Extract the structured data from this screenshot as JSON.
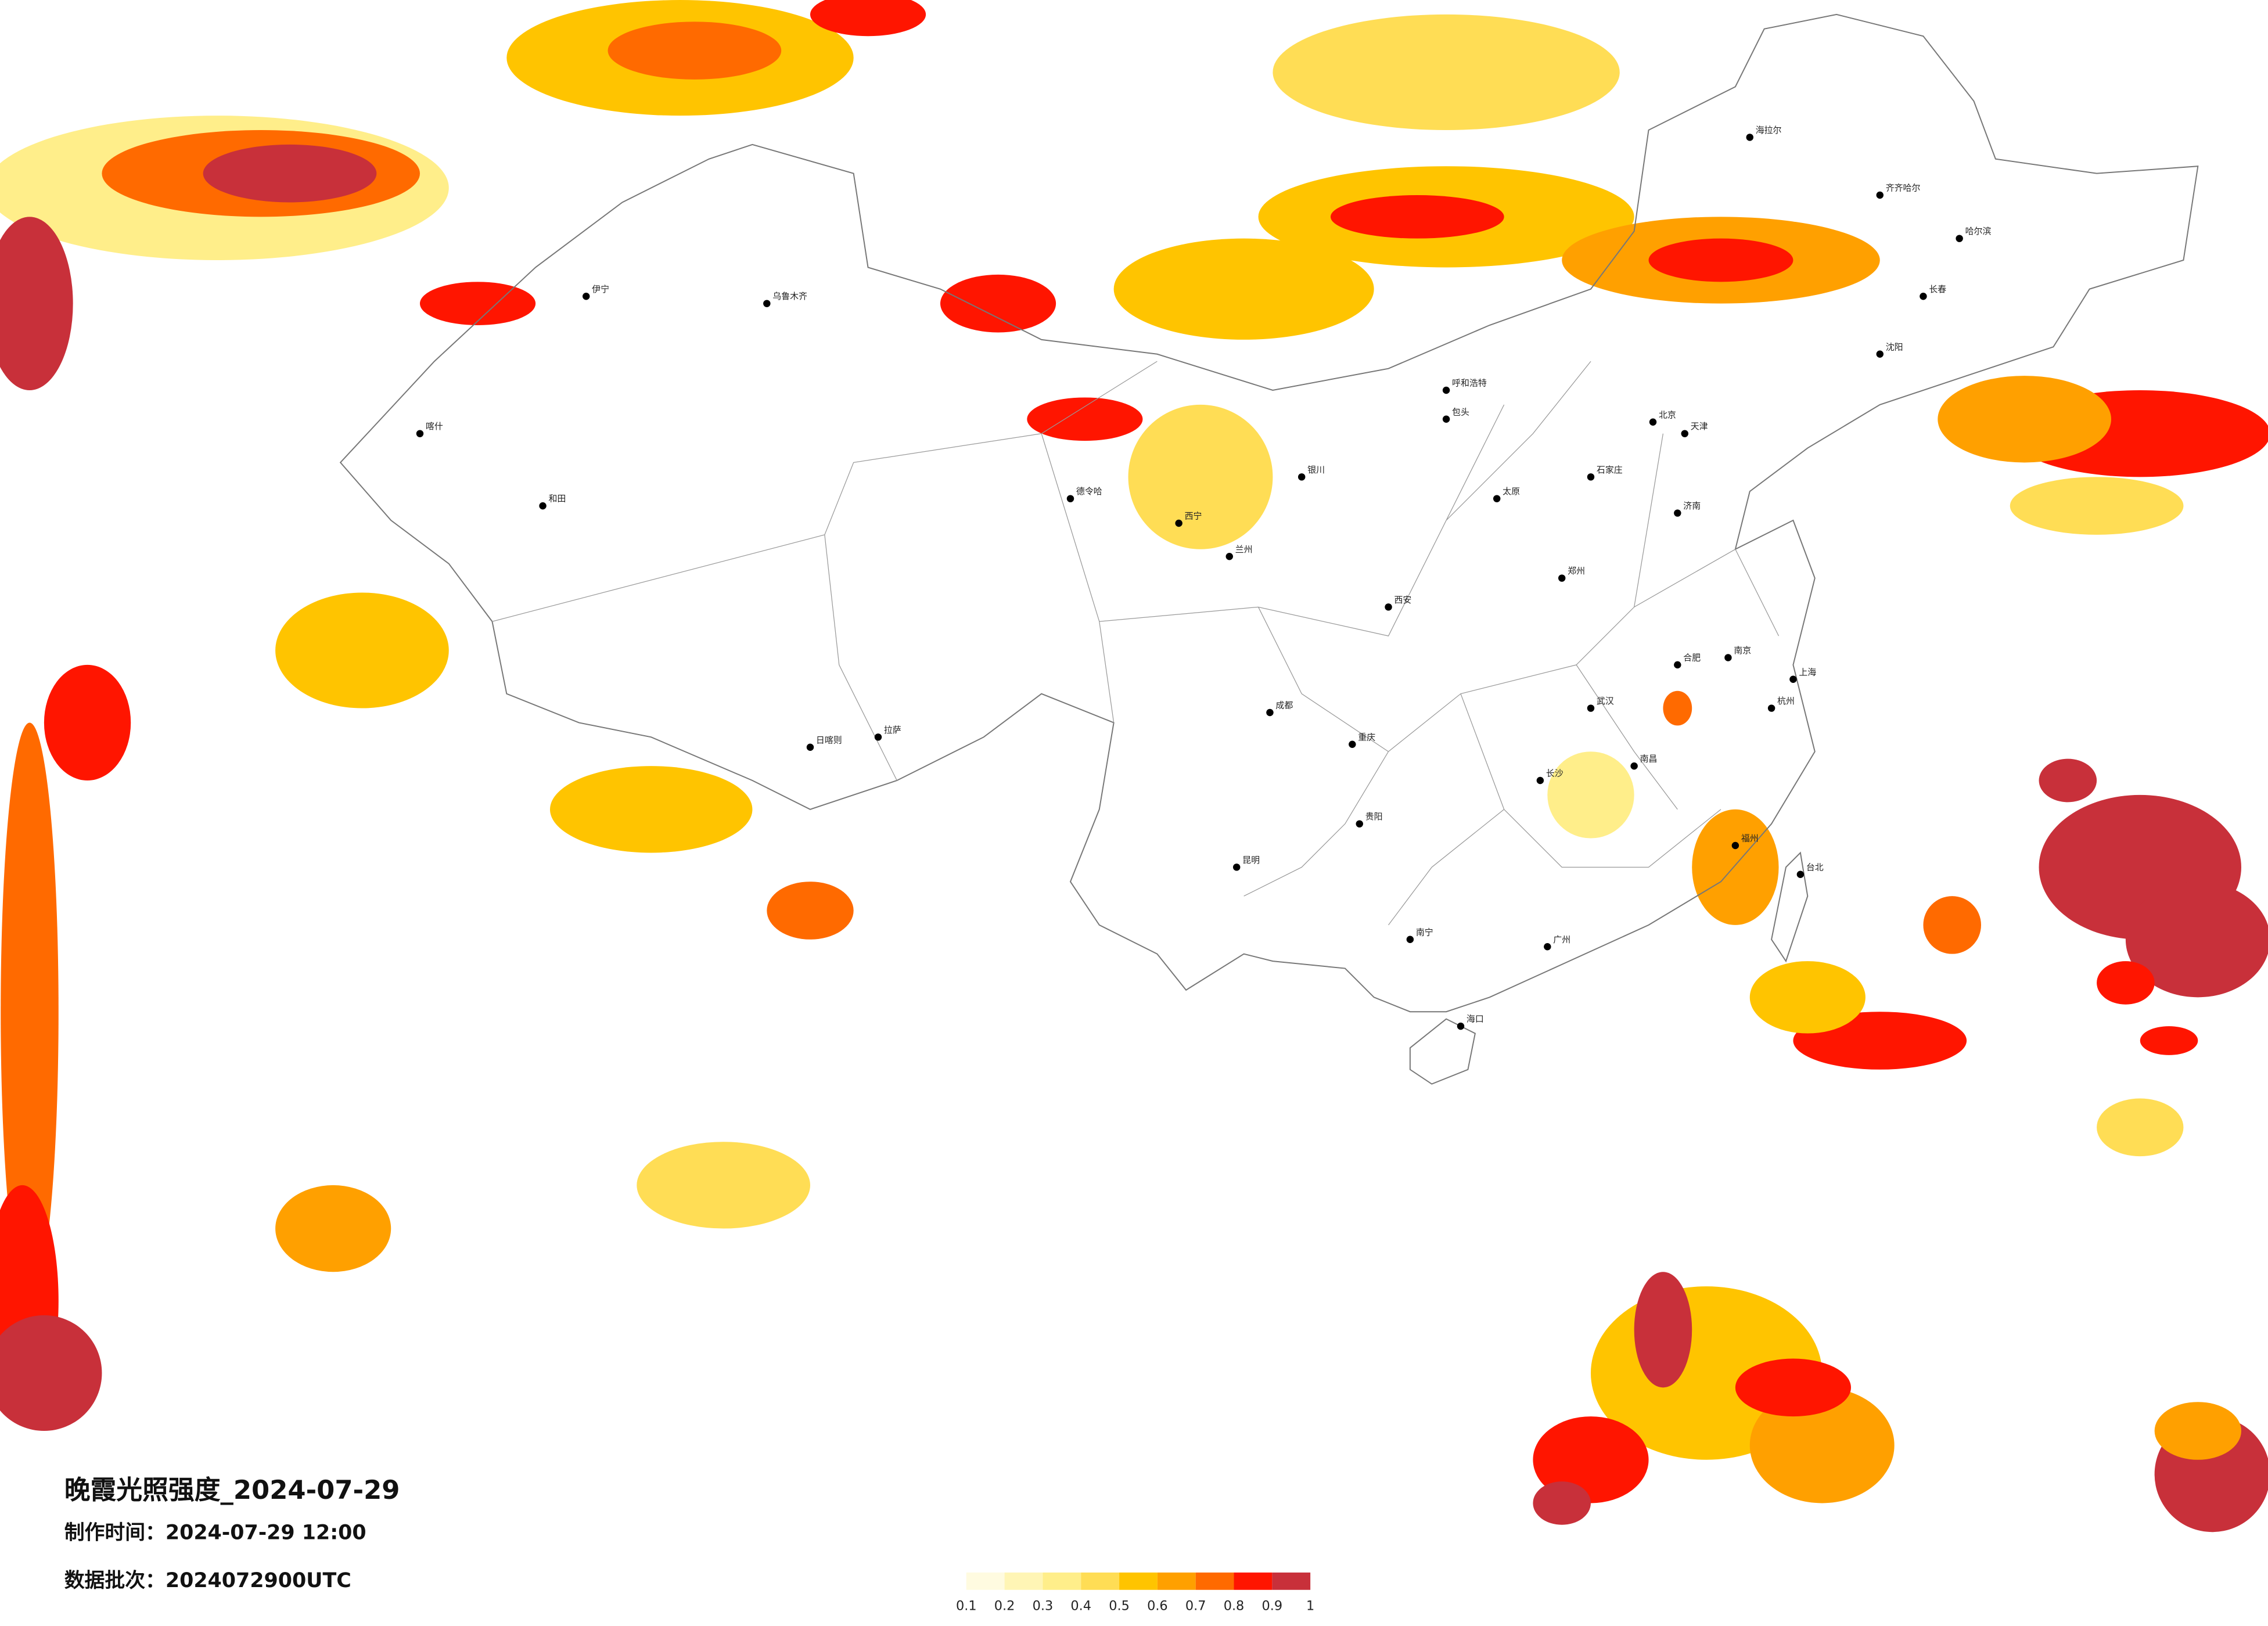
{
  "header": {
    "title": "晚霞光照强度_2024-07-29",
    "made_time": "制作时间：2024-07-29 12:00",
    "batch": "数据批次：2024072900UTC"
  },
  "legend": {
    "colors": [
      "#fffbe0",
      "#fff5b5",
      "#ffee8a",
      "#ffdd55",
      "#ffc400",
      "#ffa000",
      "#ff6a00",
      "#ff1500",
      "#c8303a"
    ],
    "ticks": [
      0.1,
      0.2,
      0.3,
      0.4,
      0.5,
      0.6,
      0.7,
      0.8,
      0.9,
      1
    ]
  },
  "cities": [
    "乌鲁木齐",
    "喀什",
    "和田",
    "伊宁",
    "德令哈",
    "拉萨",
    "日喀则",
    "西宁",
    "兰州",
    "银川",
    "呼和浩特",
    "北京",
    "天津",
    "石家庄",
    "太原",
    "济南",
    "郑州",
    "西安",
    "成都",
    "重庆",
    "贵阳",
    "昆明",
    "南宁",
    "广州",
    "海口",
    "长沙",
    "武汉",
    "南昌",
    "合肥",
    "南京",
    "上海",
    "杭州",
    "福州",
    "台北",
    "沈阳",
    "长春",
    "哈尔滨",
    "齐齐哈尔",
    "海拉尔",
    "包头"
  ]
}
